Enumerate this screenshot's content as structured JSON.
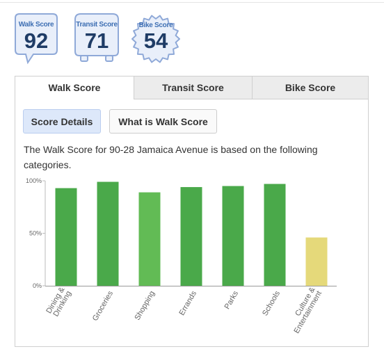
{
  "badges": {
    "walk": {
      "label": "Walk Score",
      "value": "92"
    },
    "transit": {
      "label": "Transit Score",
      "value": "71"
    },
    "bike": {
      "label": "Bike Score",
      "value": "54"
    }
  },
  "tabs": [
    {
      "label": "Walk Score",
      "active": true
    },
    {
      "label": "Transit Score",
      "active": false
    },
    {
      "label": "Bike Score",
      "active": false
    }
  ],
  "buttons": {
    "details": "Score Details",
    "what": "What is Walk Score"
  },
  "description": "The Walk Score for 90-28 Jamaica Avenue is based on the following categories.",
  "colors": {
    "bar_dark": "#4aa94a",
    "bar_light": "#62bb55",
    "bar_yellow": "#e5d97a",
    "badge_border": "#8fa9d8",
    "badge_fill": "#e9effa"
  },
  "chart_data": {
    "type": "bar",
    "categories": [
      "Dining & Drinking",
      "Groceries",
      "Shopping",
      "Errands",
      "Parks",
      "Schools",
      "Culture & Entertainment"
    ],
    "category_lines": [
      [
        "Dining &",
        "Drinking"
      ],
      [
        "Groceries"
      ],
      [
        "Shopping"
      ],
      [
        "Errands"
      ],
      [
        "Parks"
      ],
      [
        "Schools"
      ],
      [
        "Culture &",
        "Entertainment"
      ]
    ],
    "values": [
      93,
      99,
      89,
      94,
      95,
      97,
      46
    ],
    "bar_colors": [
      "#4aa94a",
      "#4aa94a",
      "#62bb55",
      "#4aa94a",
      "#4aa94a",
      "#4aa94a",
      "#e5d97a"
    ],
    "y_ticks": [
      {
        "value": 0,
        "label": "0%"
      },
      {
        "value": 50,
        "label": "50%"
      },
      {
        "value": 100,
        "label": "100%"
      }
    ],
    "ylim": [
      0,
      100
    ],
    "grid": false,
    "legend": "none"
  }
}
